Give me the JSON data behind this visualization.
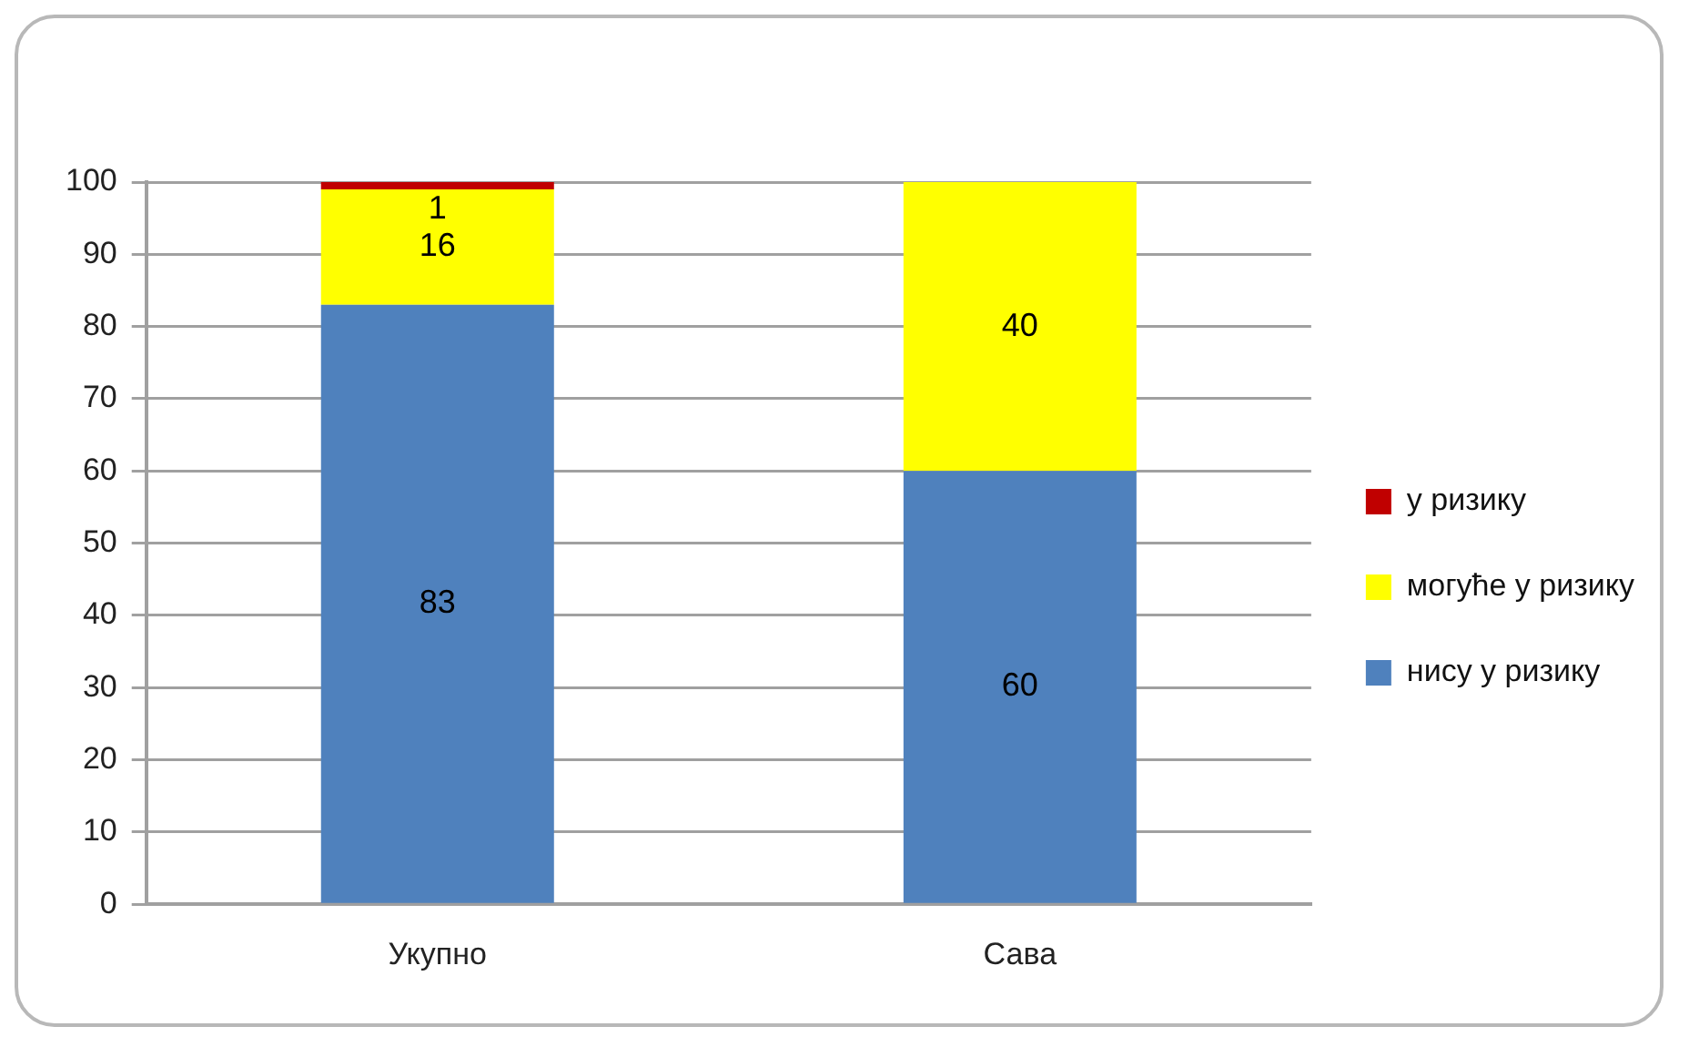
{
  "chart_data": {
    "type": "bar",
    "stacked": true,
    "categories": [
      "Укупно",
      "Сава"
    ],
    "series": [
      {
        "name": "нису у ризику",
        "color": "#4f81bd",
        "values": [
          83,
          60
        ]
      },
      {
        "name": "могуће у ризику",
        "color": "#ffff00",
        "values": [
          16,
          40
        ]
      },
      {
        "name": "у ризику",
        "color": "#c00000",
        "values": [
          1,
          null
        ]
      }
    ],
    "ylim": [
      0,
      100
    ],
    "yticks": [
      0,
      10,
      20,
      30,
      40,
      50,
      60,
      70,
      80,
      90,
      100
    ],
    "grid": "y",
    "legend": "right",
    "data_labels": true
  }
}
